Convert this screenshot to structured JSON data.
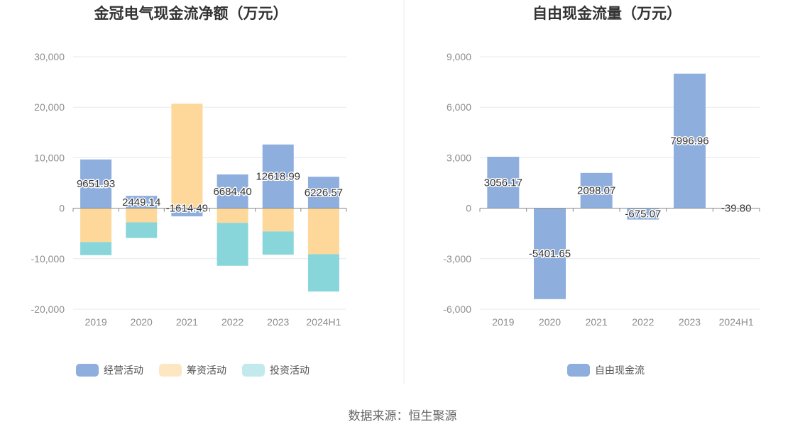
{
  "source": "数据来源：恒生聚源",
  "colors": {
    "operating": "#8eaedd",
    "financing": "#fdd89a",
    "investing": "#88d6da",
    "free_cf": "#8eaedd"
  },
  "chart_data": [
    {
      "type": "bar",
      "stacked": true,
      "title": "金冠电气现金流净额（万元）",
      "categories": [
        "2019",
        "2020",
        "2021",
        "2022",
        "2023",
        "2024H1"
      ],
      "ylim": [
        -20000,
        30000
      ],
      "yticks": [
        30000,
        20000,
        10000,
        0,
        -10000,
        -20000
      ],
      "ytick_labels": [
        "30,000",
        "20,000",
        "10,000",
        "0",
        "-10,000",
        "-20,000"
      ],
      "grid": true,
      "legend_position": "bottom",
      "series": [
        {
          "name": "经营活动",
          "values": [
            9651.93,
            2449.14,
            -1614.49,
            6684.4,
            12618.99,
            6226.57
          ],
          "labels": [
            "9651.93",
            "2449.14",
            "-1614.49",
            "6684.40",
            "12618.99",
            "6226.57"
          ]
        },
        {
          "name": "筹资活动",
          "values": [
            -6700,
            -2800,
            20700,
            -2900,
            -4600,
            -9100
          ]
        },
        {
          "name": "投资活动",
          "values": [
            -2600,
            -3100,
            0,
            -8500,
            -4600,
            -7400
          ]
        }
      ]
    },
    {
      "type": "bar",
      "title": "自由现金流量（万元）",
      "categories": [
        "2019",
        "2020",
        "2021",
        "2022",
        "2023",
        "2024H1"
      ],
      "ylim": [
        -6000,
        9000
      ],
      "yticks": [
        9000,
        6000,
        3000,
        0,
        -3000,
        -6000
      ],
      "ytick_labels": [
        "9,000",
        "6,000",
        "3,000",
        "0",
        "-3,000",
        "-6,000"
      ],
      "grid": true,
      "legend_position": "bottom",
      "series": [
        {
          "name": "自由现金流",
          "values": [
            3056.17,
            -5401.65,
            2098.07,
            -675.07,
            7996.96,
            -39.8
          ],
          "labels": [
            "3056.17",
            "-5401.65",
            "2098.07",
            "-675.07",
            "7996.96",
            "-39.80"
          ]
        }
      ]
    }
  ]
}
